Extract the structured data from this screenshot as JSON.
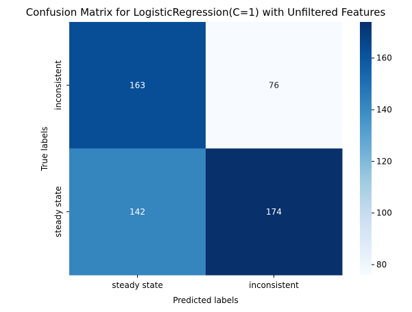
{
  "chart_data": {
    "type": "heatmap",
    "title": "Confusion Matrix for LogisticRegression(C=1) with Unfiltered Features",
    "xlabel": "Predicted labels",
    "ylabel": "True labels",
    "x_categories": [
      "steady state",
      "inconsistent"
    ],
    "y_categories": [
      "inconsistent",
      "steady state"
    ],
    "values": [
      [
        163,
        76
      ],
      [
        142,
        174
      ]
    ],
    "colormap": "Blues",
    "color_range": [
      76,
      174
    ],
    "colorbar_ticks": [
      80,
      100,
      120,
      140,
      160
    ],
    "colorbar_tick_labels": [
      "80",
      "100",
      "120",
      "140",
      "160"
    ],
    "annotation_colors": {
      "light": "#ffffff",
      "dark": "#262626"
    },
    "grid": false,
    "colorbar": "right"
  }
}
